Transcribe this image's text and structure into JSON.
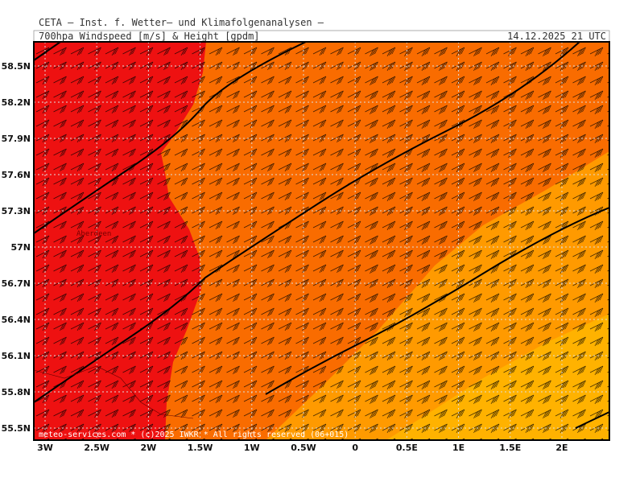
{
  "header": {
    "title": "CETA — Inst. f. Wetter— und Klimafolgenanalysen —",
    "subtitle": "700hpa Windspeed [m/s] & Height [gpdm]",
    "datetime": "14.12.2025 21 UTC"
  },
  "map": {
    "lat_labels": [
      "58.5N",
      "58.2N",
      "57.9N",
      "57.6N",
      "57.3N",
      "57N",
      "56.7N",
      "56.4N",
      "56.1N",
      "55.8N",
      "55.5N"
    ],
    "lon_labels": [
      "3W",
      "2.5W",
      "2W",
      "1.5W",
      "1W",
      "0.5W",
      "0",
      "0.5E",
      "1E",
      "1.5E",
      "2E"
    ],
    "place_label": "Aberdeen",
    "credit": "meteo-services.com * (c)2025 IWKR * All rights reserved (06+015)"
  }
}
